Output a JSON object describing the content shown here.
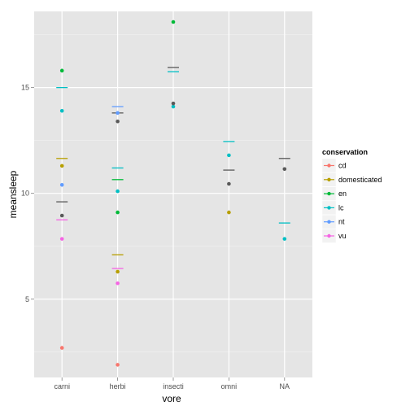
{
  "chart_data": {
    "type": "scatter",
    "title": "",
    "xlabel": "vore",
    "ylabel": "meansleep",
    "categories": [
      "carni",
      "herbi",
      "insecti",
      "omni",
      "NA"
    ],
    "yticks": [
      5,
      10,
      15
    ],
    "ylim": [
      1.3,
      18.6
    ],
    "grid": true,
    "legend": {
      "title": "conservation",
      "placement": "right",
      "entries": [
        "cd",
        "domesticated",
        "en",
        "lc",
        "nt",
        "vu"
      ]
    },
    "colors": {
      "cd": "#F8766D",
      "domesticated": "#B79F00",
      "en": "#00BA38",
      "lc": "#00BFC4",
      "nt": "#619CFF",
      "vu": "#F564E3",
      "NA": "#595959"
    },
    "points": [
      {
        "vore": "carni",
        "conservation": "cd",
        "meansleep": 2.7
      },
      {
        "vore": "carni",
        "conservation": "domesticated",
        "meansleep": 11.3
      },
      {
        "vore": "carni",
        "conservation": "en",
        "meansleep": 15.8
      },
      {
        "vore": "carni",
        "conservation": "lc",
        "meansleep": 13.9
      },
      {
        "vore": "carni",
        "conservation": "nt",
        "meansleep": 10.4
      },
      {
        "vore": "carni",
        "conservation": "vu",
        "meansleep": 7.85
      },
      {
        "vore": "carni",
        "conservation": "NA",
        "meansleep": 8.95
      },
      {
        "vore": "herbi",
        "conservation": "cd",
        "meansleep": 1.9
      },
      {
        "vore": "herbi",
        "conservation": "domesticated",
        "meansleep": 6.3
      },
      {
        "vore": "herbi",
        "conservation": "en",
        "meansleep": 9.1
      },
      {
        "vore": "herbi",
        "conservation": "lc",
        "meansleep": 10.1
      },
      {
        "vore": "herbi",
        "conservation": "nt",
        "meansleep": 13.8
      },
      {
        "vore": "herbi",
        "conservation": "vu",
        "meansleep": 5.75
      },
      {
        "vore": "herbi",
        "conservation": "NA",
        "meansleep": 13.4
      },
      {
        "vore": "insecti",
        "conservation": "en",
        "meansleep": 18.1
      },
      {
        "vore": "insecti",
        "conservation": "lc",
        "meansleep": 14.1
      },
      {
        "vore": "insecti",
        "conservation": "NA",
        "meansleep": 14.25
      },
      {
        "vore": "omni",
        "conservation": "domesticated",
        "meansleep": 9.1
      },
      {
        "vore": "omni",
        "conservation": "lc",
        "meansleep": 11.8
      },
      {
        "vore": "omni",
        "conservation": "NA",
        "meansleep": 10.45
      },
      {
        "vore": "NA",
        "conservation": "lc",
        "meansleep": 7.85
      },
      {
        "vore": "NA",
        "conservation": "NA",
        "meansleep": 11.15
      }
    ],
    "means": [
      {
        "vore": "carni",
        "conservation": "domesticated",
        "meansleep": 11.65
      },
      {
        "vore": "carni",
        "conservation": "lc",
        "meansleep": 15.0
      },
      {
        "vore": "carni",
        "conservation": "vu",
        "meansleep": 8.75
      },
      {
        "vore": "carni",
        "conservation": "NA",
        "meansleep": 9.6
      },
      {
        "vore": "herbi",
        "conservation": "domesticated",
        "meansleep": 7.1
      },
      {
        "vore": "herbi",
        "conservation": "en",
        "meansleep": 10.65
      },
      {
        "vore": "herbi",
        "conservation": "lc",
        "meansleep": 11.2
      },
      {
        "vore": "herbi",
        "conservation": "nt",
        "meansleep": 14.1
      },
      {
        "vore": "herbi",
        "conservation": "vu",
        "meansleep": 6.45
      },
      {
        "vore": "herbi",
        "conservation": "NA",
        "meansleep": 13.8
      },
      {
        "vore": "insecti",
        "conservation": "lc",
        "meansleep": 15.75
      },
      {
        "vore": "insecti",
        "conservation": "NA",
        "meansleep": 15.95
      },
      {
        "vore": "omni",
        "conservation": "lc",
        "meansleep": 12.45
      },
      {
        "vore": "omni",
        "conservation": "NA",
        "meansleep": 11.1
      },
      {
        "vore": "NA",
        "conservation": "lc",
        "meansleep": 8.6
      },
      {
        "vore": "NA",
        "conservation": "NA",
        "meansleep": 11.65
      }
    ]
  }
}
